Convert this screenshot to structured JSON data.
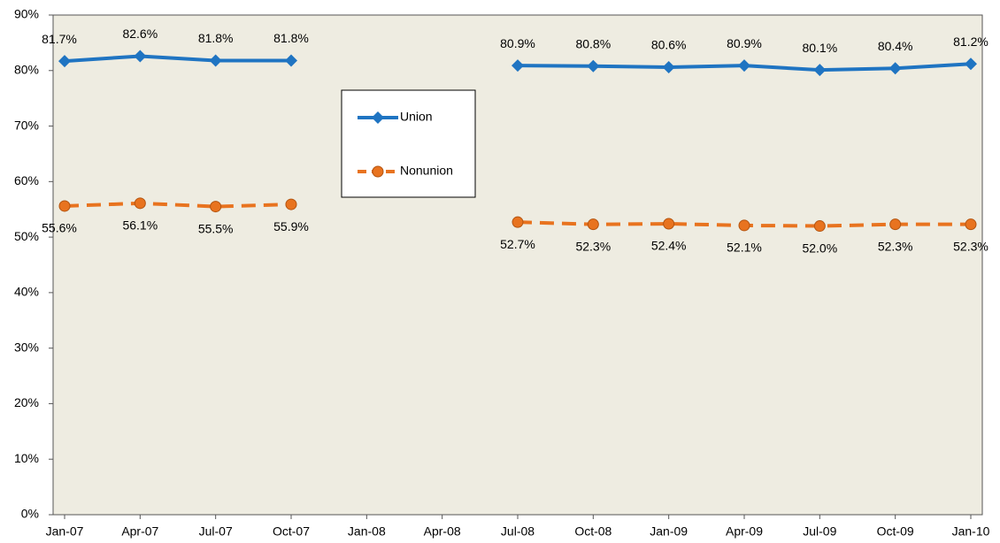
{
  "chart_data": {
    "type": "line",
    "categories": [
      "Jan-07",
      "Apr-07",
      "Jul-07",
      "Oct-07",
      "Jan-08",
      "Apr-08",
      "Jul-08",
      "Oct-08",
      "Jan-09",
      "Apr-09",
      "Jul-09",
      "Oct-09",
      "Jan-10"
    ],
    "series": [
      {
        "name": "Union",
        "color": "#1f74c2",
        "marker": "diamond",
        "dashed": false,
        "values": [
          81.7,
          82.6,
          81.8,
          81.8,
          null,
          null,
          80.9,
          80.8,
          80.6,
          80.9,
          80.1,
          80.4,
          81.2
        ],
        "value_labels": [
          "81.7%",
          "82.6%",
          "81.8%",
          "81.8%",
          null,
          null,
          "80.9%",
          "80.8%",
          "80.6%",
          "80.9%",
          "80.1%",
          "80.4%",
          "81.2%"
        ]
      },
      {
        "name": "Nonunion",
        "color": "#e8731f",
        "marker": "circle",
        "dashed": true,
        "values": [
          55.6,
          56.1,
          55.5,
          55.9,
          null,
          null,
          52.7,
          52.3,
          52.4,
          52.1,
          52.0,
          52.3,
          52.3
        ],
        "value_labels": [
          "55.6%",
          "56.1%",
          "55.5%",
          "55.9%",
          null,
          null,
          "52.7%",
          "52.3%",
          "52.4%",
          "52.1%",
          "52.0%",
          "52.3%",
          "52.3%"
        ]
      }
    ],
    "ylim": [
      0,
      90
    ],
    "yticks": [
      {
        "value": 0,
        "label": "0%"
      },
      {
        "value": 10,
        "label": "10%"
      },
      {
        "value": 20,
        "label": "20%"
      },
      {
        "value": 30,
        "label": "30%"
      },
      {
        "value": 40,
        "label": "40%"
      },
      {
        "value": 50,
        "label": "50%"
      },
      {
        "value": 60,
        "label": "60%"
      },
      {
        "value": 70,
        "label": "70%"
      },
      {
        "value": 80,
        "label": "80%"
      },
      {
        "value": 90,
        "label": "90%"
      }
    ],
    "grid": false,
    "legend": "upper-center"
  }
}
